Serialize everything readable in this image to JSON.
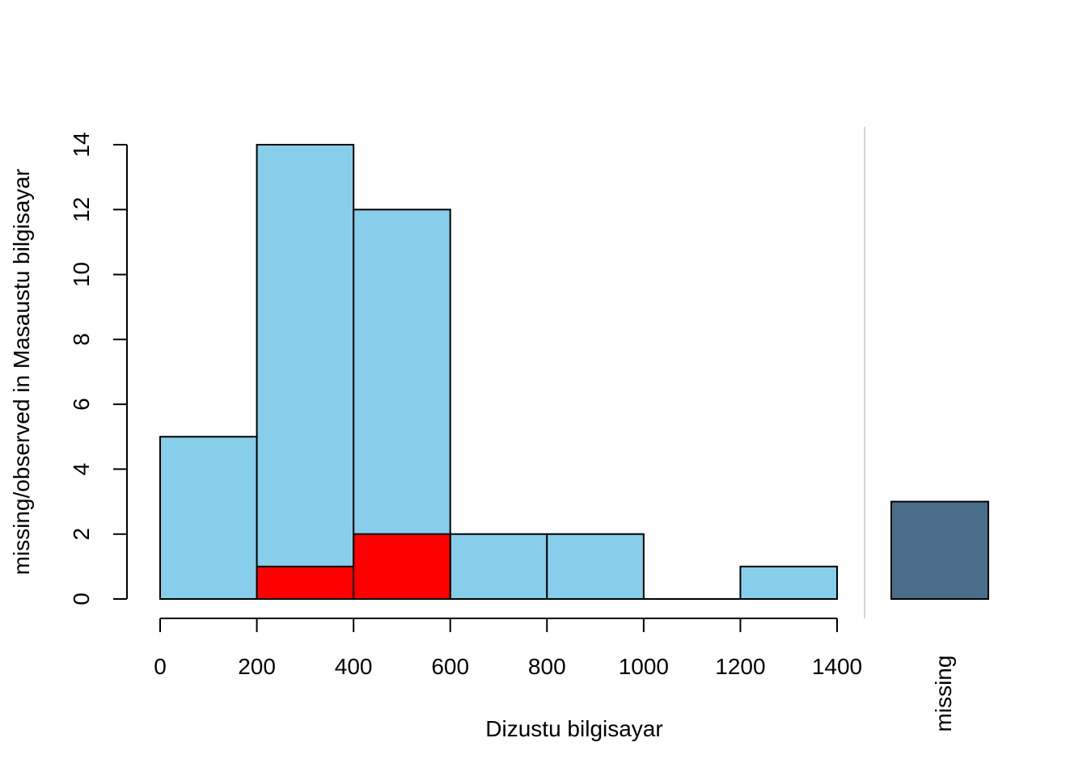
{
  "chart_data": {
    "type": "bar",
    "subtype": "histogram-with-missing-bar",
    "xlabel": "Dizustu bilgisayar",
    "ylabel": "missing/observed in Masaustu bilgisayar",
    "xlim": [
      0,
      1400
    ],
    "ylim": [
      0,
      14
    ],
    "bins": [
      {
        "from": 0,
        "to": 200,
        "observed": 5,
        "missing": 0
      },
      {
        "from": 200,
        "to": 400,
        "observed": 14,
        "missing": 1
      },
      {
        "from": 400,
        "to": 600,
        "observed": 12,
        "missing": 2
      },
      {
        "from": 600,
        "to": 800,
        "observed": 2,
        "missing": 0
      },
      {
        "from": 800,
        "to": 1000,
        "observed": 2,
        "missing": 0
      },
      {
        "from": 1000,
        "to": 1200,
        "observed": 0,
        "missing": 0
      },
      {
        "from": 1200,
        "to": 1400,
        "observed": 1,
        "missing": 0
      }
    ],
    "x_ticks": [
      "0",
      "200",
      "400",
      "600",
      "800",
      "1000",
      "1200",
      "1400"
    ],
    "y_ticks": [
      "0",
      "2",
      "4",
      "6",
      "8",
      "10",
      "12",
      "14"
    ],
    "missing_bar": {
      "label": "missing",
      "value": 3
    },
    "colors": {
      "observed": "#87CEEB",
      "missing": "#FF0000",
      "missing_bar": "#4A6E8A",
      "separator": "#D3D3D3"
    }
  }
}
